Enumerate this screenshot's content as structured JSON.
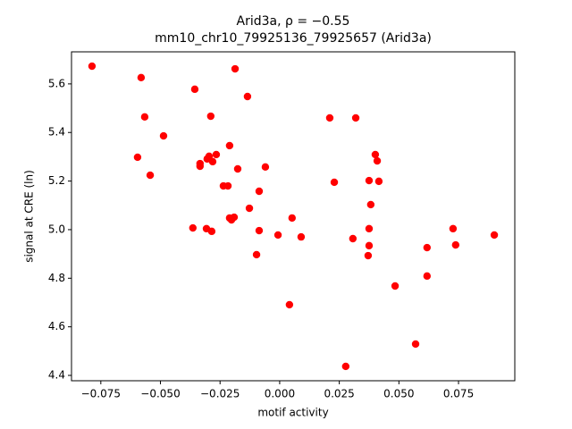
{
  "chart_data": {
    "type": "scatter",
    "title": "Arid3a, ρ = −0.55",
    "subtitle": "mm10_chr10_79925136_79925657 (Arid3a)",
    "x_label": "motif activity",
    "y_label": "signal at CRE (ln)",
    "color": "#ff0000",
    "xlim": [
      -0.0873,
      0.0986
    ],
    "ylim": [
      4.378,
      5.732
    ],
    "xticks": [
      {
        "value": -0.075,
        "label": "−0.075"
      },
      {
        "value": -0.05,
        "label": "−0.050"
      },
      {
        "value": -0.025,
        "label": "−0.025"
      },
      {
        "value": 0,
        "label": "0.000"
      },
      {
        "value": 0.025,
        "label": "0.025"
      },
      {
        "value": 0.05,
        "label": "0.050"
      },
      {
        "value": 0.075,
        "label": "0.075"
      }
    ],
    "yticks": [
      4.4,
      4.6,
      4.8,
      {
        "value": 5,
        "label": "5.0"
      },
      5.2,
      5.4,
      5.6
    ],
    "x": [
      -0.0787,
      -0.0581,
      -0.0566,
      -0.0356,
      -0.0187,
      -0.0135,
      -0.0289,
      -0.0487,
      -0.0596,
      -0.0543,
      -0.0334,
      -0.0334,
      -0.0304,
      -0.0296,
      -0.0266,
      -0.0281,
      -0.021,
      -0.0176,
      -0.006,
      -0.0236,
      -0.0217,
      -0.0086,
      -0.0127,
      -0.021,
      -0.0191,
      -0.0202,
      0.0052,
      -0.0364,
      -0.0307,
      -0.0285,
      -0.0086,
      -0.0007,
      0.009,
      -0.0097,
      0.0041,
      0.021,
      0.0319,
      0.0229,
      0.0401,
      0.0409,
      0.0375,
      0.0416,
      0.0382,
      0.0307,
      0.0375,
      0.0375,
      0.0371,
      0.0484,
      0.0618,
      0.0618,
      0.0727,
      0.0738,
      0.09,
      0.057,
      0.0277
    ],
    "values": [
      5.673,
      5.626,
      5.464,
      5.578,
      5.662,
      5.548,
      5.467,
      5.386,
      5.298,
      5.224,
      5.272,
      5.261,
      5.291,
      5.302,
      5.309,
      5.28,
      5.346,
      5.25,
      5.258,
      5.18,
      5.18,
      5.158,
      5.088,
      5.048,
      5.051,
      5.04,
      5.048,
      5.007,
      5.004,
      4.993,
      4.996,
      4.978,
      4.97,
      4.897,
      4.691,
      5.46,
      5.46,
      5.195,
      5.309,
      5.283,
      5.202,
      5.199,
      5.103,
      4.963,
      5.004,
      4.934,
      4.893,
      4.768,
      4.926,
      4.809,
      5.004,
      4.937,
      4.978,
      4.529,
      4.437
    ]
  }
}
